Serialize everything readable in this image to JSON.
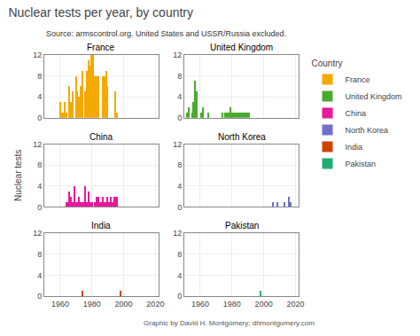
{
  "chart_data": {
    "type": "bar",
    "title": "Nuclear tests per year, by country",
    "subtitle": "Source: armscontrol.org. United States and USSR/Russia excluded.",
    "ylabel": "Nuclear tests",
    "legend_title": "Country",
    "annotations": [
      "Graphic by David H. Montgomery; dhmontgomery.com"
    ],
    "legend": "upper right",
    "grid": true,
    "xlim": [
      1950,
      2022
    ],
    "ylim": [
      0,
      12
    ],
    "xticks": [
      1960,
      1980,
      2000,
      2020
    ],
    "yticks": [
      0,
      4,
      8,
      12
    ],
    "series": [
      {
        "name": "France",
        "color": "#f5a800",
        "x": [
          1960,
          1961,
          1962,
          1963,
          1964,
          1966,
          1967,
          1968,
          1970,
          1971,
          1972,
          1973,
          1974,
          1976,
          1977,
          1978,
          1979,
          1980,
          1981,
          1982,
          1983,
          1984,
          1987,
          1988,
          1989,
          1990,
          1995,
          1996
        ],
        "values": [
          3,
          1,
          1,
          3,
          1,
          6,
          3,
          5,
          8,
          5,
          4,
          6,
          9,
          5,
          9,
          11,
          10,
          12,
          12,
          8,
          8,
          8,
          8,
          8,
          9,
          6,
          5,
          1
        ]
      },
      {
        "name": "United Kingdom",
        "color": "#4aaa30",
        "x": [
          1952,
          1953,
          1955,
          1956,
          1957,
          1958,
          1961,
          1962,
          1965,
          1974,
          1976,
          1977,
          1978,
          1979,
          1980,
          1981,
          1982,
          1983,
          1984,
          1985,
          1986,
          1987,
          1988,
          1989,
          1990,
          1991
        ],
        "values": [
          1,
          2,
          1,
          3,
          7,
          5,
          1,
          2,
          1,
          1,
          1,
          1,
          1,
          2,
          1,
          1,
          1,
          1,
          1,
          1,
          1,
          1,
          1,
          1,
          1,
          1
        ]
      },
      {
        "name": "China",
        "color": "#e8199c",
        "x": [
          1964,
          1965,
          1966,
          1967,
          1968,
          1969,
          1970,
          1971,
          1972,
          1973,
          1974,
          1975,
          1976,
          1977,
          1978,
          1979,
          1980,
          1982,
          1983,
          1984,
          1985,
          1986,
          1987,
          1988,
          1989,
          1990,
          1991,
          1992,
          1993,
          1994,
          1995,
          1996
        ],
        "values": [
          1,
          1,
          3,
          2,
          1,
          4,
          1,
          1,
          2,
          1,
          1,
          1,
          4,
          1,
          3,
          1,
          1,
          1,
          2,
          2,
          1,
          1,
          2,
          1,
          1,
          2,
          1,
          2,
          1,
          2,
          2,
          2
        ]
      },
      {
        "name": "North Korea",
        "color": "#7070cc",
        "x": [
          2006,
          2009,
          2013,
          2016,
          2017
        ],
        "values": [
          1,
          1,
          1,
          2,
          1
        ]
      },
      {
        "name": "India",
        "color": "#cc4400",
        "x": [
          1974,
          1998
        ],
        "values": [
          1,
          1
        ]
      },
      {
        "name": "Pakistan",
        "color": "#22aa77",
        "x": [
          1998
        ],
        "values": [
          1
        ]
      }
    ]
  }
}
